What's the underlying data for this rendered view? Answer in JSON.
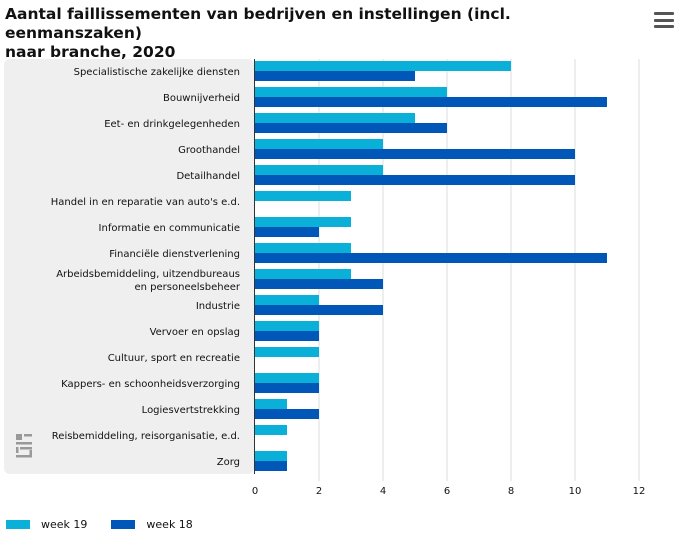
{
  "header": {
    "title_line1": "Aantal faillissementen van bedrijven en instellingen (incl. eenmanszaken)",
    "title_line2": "naar branche, 2020",
    "menu_icon": "hamburger-menu-icon"
  },
  "logo_text": "cbs",
  "colors": {
    "week19": "#0bb0d9",
    "week18": "#0057b8",
    "panel": "#efefef",
    "grid": "#dcdcdc"
  },
  "chart_data": {
    "type": "bar",
    "orientation": "horizontal",
    "title": "Aantal faillissementen van bedrijven en instellingen (incl. eenmanszaken) naar branche, 2020",
    "categories": [
      [
        "Specialistische zakelijke diensten"
      ],
      [
        "Bouwnijverheid"
      ],
      [
        "Eet- en drinkgelegenheden"
      ],
      [
        "Groothandel"
      ],
      [
        "Detailhandel"
      ],
      [
        "Handel in en reparatie van auto's e.d."
      ],
      [
        "Informatie en communicatie"
      ],
      [
        "Financiële dienstverlening"
      ],
      [
        "Arbeidsbemiddeling, uitzendbureaus",
        "en personeelsbeheer"
      ],
      [
        "Industrie"
      ],
      [
        "Vervoer en opslag"
      ],
      [
        "Cultuur, sport en recreatie"
      ],
      [
        "Kappers- en schoonheidsverzorging"
      ],
      [
        "Logiesvertstrekking"
      ],
      [
        "Reisbemiddeling, reisorganisatie, e.d."
      ],
      [
        "Zorg"
      ]
    ],
    "series": [
      {
        "name": "week 19",
        "values": [
          8,
          6,
          5,
          4,
          4,
          3,
          3,
          3,
          3,
          2,
          2,
          2,
          2,
          1,
          1,
          1
        ]
      },
      {
        "name": "week 18",
        "values": [
          5,
          11,
          6,
          10,
          10,
          0,
          2,
          11,
          4,
          4,
          2,
          0,
          2,
          2,
          0,
          1
        ]
      }
    ],
    "xlim": [
      0,
      12
    ],
    "ticks": [
      "0",
      "2",
      "4",
      "6",
      "8",
      "10",
      "12"
    ],
    "grid": true,
    "legend_position": "bottom-left"
  }
}
